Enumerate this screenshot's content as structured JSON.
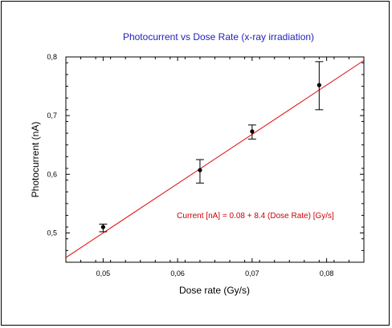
{
  "chart_data": {
    "type": "scatter",
    "title": "Photocurrent vs Dose Rate (x-ray irradiation)",
    "xlabel": "Dose rate (Gy/s)",
    "ylabel": "Photocurrent (nA)",
    "xlim": [
      0.045,
      0.085
    ],
    "ylim": [
      0.45,
      0.8
    ],
    "x_ticks": [
      {
        "value": 0.05,
        "label": "0,05"
      },
      {
        "value": 0.06,
        "label": "0,06"
      },
      {
        "value": 0.07,
        "label": "0,07"
      },
      {
        "value": 0.08,
        "label": "0,08"
      }
    ],
    "y_ticks": [
      {
        "value": 0.5,
        "label": "0,5"
      },
      {
        "value": 0.6,
        "label": "0,6"
      },
      {
        "value": 0.7,
        "label": "0,7"
      },
      {
        "value": 0.8,
        "label": "0,8"
      }
    ],
    "grid": false,
    "points": [
      {
        "x": 0.05,
        "y": 0.51,
        "err_low": 0.502,
        "err_high": 0.515
      },
      {
        "x": 0.063,
        "y": 0.607,
        "err_low": 0.585,
        "err_high": 0.625
      },
      {
        "x": 0.07,
        "y": 0.673,
        "err_low": 0.66,
        "err_high": 0.684
      },
      {
        "x": 0.079,
        "y": 0.752,
        "err_low": 0.71,
        "err_high": 0.792
      }
    ],
    "fit": {
      "intercept": 0.08,
      "slope": 8.4,
      "color": "#e00000",
      "label": "Current [nA] = 0.08 + 8.4 (Dose Rate) [Gy/s]"
    },
    "colors": {
      "title": "#1f1fbf",
      "fit_line": "#e00000",
      "fit_label": "#cc0000",
      "points": "#000000"
    }
  }
}
